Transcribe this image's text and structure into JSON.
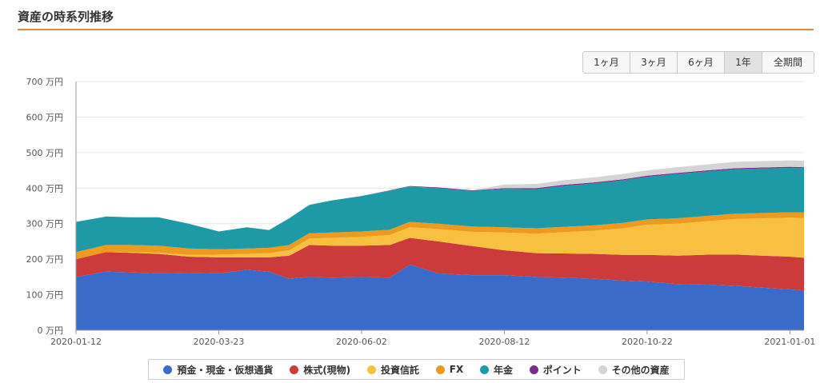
{
  "page": {
    "title": "資産の時系列推移"
  },
  "range_buttons": [
    {
      "label": "1ヶ月",
      "active": false
    },
    {
      "label": "3ヶ月",
      "active": false
    },
    {
      "label": "6ヶ月",
      "active": false
    },
    {
      "label": "1年",
      "active": true
    },
    {
      "label": "全期間",
      "active": false
    }
  ],
  "chart_data": {
    "type": "area",
    "stacked": true,
    "y_unit": "万円",
    "ylim": [
      0,
      700
    ],
    "y_ticks": [
      0,
      100,
      200,
      300,
      400,
      500,
      600,
      700
    ],
    "y_tick_labels": [
      "0 万円",
      "100 万円",
      "200 万円",
      "300 万円",
      "400 万円",
      "500 万円",
      "600 万円",
      "700 万円"
    ],
    "x_tick_labels": [
      "2020-01-12",
      "2020-03-23",
      "2020-06-02",
      "2020-08-12",
      "2020-10-22",
      "2021-01-01"
    ],
    "x_ticks": [
      "2020-01-12",
      "2020-03-23",
      "2020-06-02",
      "2020-08-12",
      "2020-10-22",
      "2021-01-01"
    ],
    "x": [
      "2020-01-12",
      "2020-01-27",
      "2020-02-08",
      "2020-02-22",
      "2020-03-08",
      "2020-03-23",
      "2020-04-06",
      "2020-04-17",
      "2020-04-27",
      "2020-05-07",
      "2020-05-18",
      "2020-06-02",
      "2020-06-16",
      "2020-06-26",
      "2020-07-10",
      "2020-07-27",
      "2020-08-12",
      "2020-08-28",
      "2020-09-10",
      "2020-09-25",
      "2020-10-10",
      "2020-10-22",
      "2020-11-06",
      "2020-11-23",
      "2020-12-05",
      "2020-12-18",
      "2021-01-01",
      "2021-01-08"
    ],
    "grid": true,
    "legend_position": "bottom",
    "series": [
      {
        "name": "預金・現金・仮想通貨",
        "color": "#3a6bc9",
        "values": [
          150,
          165,
          163,
          160,
          162,
          160,
          170,
          165,
          145,
          150,
          148,
          150,
          148,
          185,
          160,
          155,
          155,
          150,
          148,
          145,
          140,
          137,
          130,
          128,
          125,
          120,
          115,
          112
        ]
      },
      {
        "name": "株式(現物)",
        "color": "#cc3b3b",
        "values": [
          50,
          55,
          55,
          55,
          45,
          45,
          35,
          40,
          65,
          90,
          90,
          88,
          92,
          75,
          90,
          82,
          70,
          67,
          68,
          70,
          72,
          75,
          80,
          85,
          88,
          90,
          92,
          92
        ]
      },
      {
        "name": "投資信託",
        "color": "#f7c040",
        "values": [
          0,
          0,
          2,
          3,
          5,
          8,
          10,
          12,
          15,
          18,
          22,
          25,
          28,
          30,
          35,
          40,
          50,
          55,
          60,
          65,
          75,
          85,
          90,
          95,
          100,
          105,
          110,
          112
        ]
      },
      {
        "name": "FX",
        "color": "#ee9a1e",
        "values": [
          20,
          20,
          20,
          20,
          18,
          15,
          15,
          15,
          15,
          15,
          15,
          15,
          15,
          15,
          15,
          15,
          15,
          15,
          15,
          15,
          15,
          15,
          15,
          15,
          15,
          15,
          15,
          15
        ]
      },
      {
        "name": "年金",
        "color": "#1e9aa6",
        "values": [
          85,
          80,
          78,
          80,
          70,
          50,
          60,
          50,
          75,
          80,
          90,
          100,
          110,
          100,
          100,
          100,
          108,
          110,
          115,
          118,
          120,
          120,
          125,
          125,
          125,
          125,
          125,
          125
        ]
      },
      {
        "name": "ポイント",
        "color": "#7b2d8e",
        "values": [
          0,
          0,
          0,
          0,
          0,
          0,
          0,
          0,
          0,
          0,
          0,
          0,
          1,
          1,
          2,
          2,
          2,
          3,
          3,
          3,
          3,
          3,
          3,
          3,
          3,
          3,
          3,
          3
        ]
      },
      {
        "name": "その他の資産",
        "color": "#d4d4d4",
        "values": [
          0,
          0,
          0,
          0,
          0,
          0,
          0,
          0,
          0,
          0,
          0,
          0,
          0,
          0,
          0,
          0,
          10,
          12,
          13,
          14,
          15,
          15,
          16,
          17,
          18,
          18,
          18,
          18
        ]
      }
    ]
  }
}
